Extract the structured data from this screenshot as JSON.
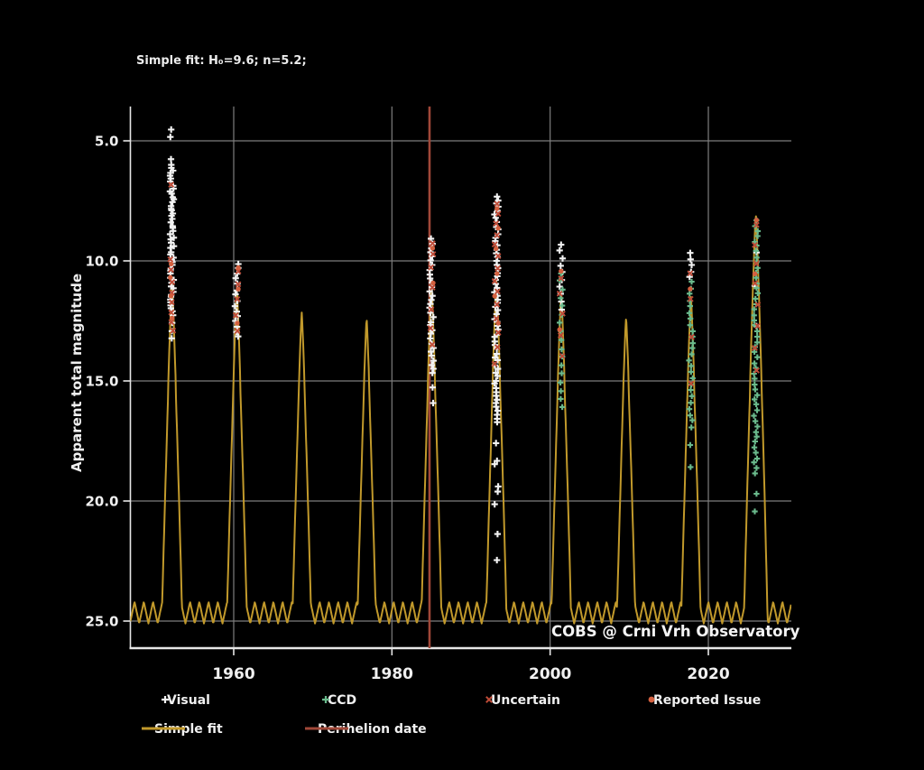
{
  "title": "Simple fit: H₀=9.6; n=5.2;",
  "watermark": "COBS @ Crni Vrh Observatory",
  "axes": {
    "ylabel": "Apparent total magnitude",
    "x_ticks": [
      1960,
      1980,
      2000,
      2020
    ],
    "x_tick_labels": [
      "1960",
      "1980",
      "2000",
      "2020"
    ],
    "y_ticks": [
      5,
      10,
      15,
      20,
      25
    ],
    "y_tick_labels": [
      "5.0",
      "10.0",
      "15.0",
      "20.0",
      "25.0"
    ],
    "x_range_years": [
      1946.94,
      2030.5
    ],
    "y_range_mag_top_to_bottom": [
      3.57,
      26.13
    ],
    "grid": true
  },
  "colors": {
    "background": "#000000",
    "grid": "#7e7e7e",
    "spine": "#e6e6e6",
    "text": "#f0f0f0",
    "visual": "#f2f2f2",
    "ccd": "#6aba8c",
    "uncertain": "#c04c38",
    "reported_issue": "#d4603f",
    "simple_fit": "#c1992b",
    "perihelion": "#a04738"
  },
  "legend": {
    "position": "bottom",
    "items": [
      {
        "label": "Visual",
        "marker": "plus",
        "color": "#f2f2f2"
      },
      {
        "label": "CCD",
        "marker": "plus",
        "color": "#6aba8c"
      },
      {
        "label": "Uncertain",
        "marker": "x",
        "color": "#c04c38"
      },
      {
        "label": "Reported Issue",
        "marker": "circle",
        "color": "#d4603f"
      },
      {
        "label": "Simple fit",
        "marker": "line",
        "color": "#c1992b"
      },
      {
        "label": "Perihelion date",
        "marker": "line",
        "color": "#a04738"
      }
    ]
  },
  "chart_data": {
    "type": "scatter",
    "title": "Simple fit: H₀=9.6; n=5.2;",
    "xlabel": "",
    "ylabel": "Apparent total magnitude",
    "xlim": [
      1946.94,
      2030.5
    ],
    "ylim_inverted_mag": [
      26.13,
      3.57
    ],
    "perihelion_year": 1984.75,
    "fit_curve": {
      "name": "Simple fit",
      "color": "#c1992b",
      "base_mag_min": 24.2,
      "base_mag_max": 25.1,
      "annual_wiggle_period_years": 1.17,
      "flank_steepness": 10.3,
      "flank_exponent": 1.2,
      "peaks": [
        [
          1952.2,
          10.9
        ],
        [
          1960.4,
          11.2
        ],
        [
          1968.6,
          12.15
        ],
        [
          1976.8,
          12.4
        ],
        [
          1985.0,
          11.0
        ],
        [
          1993.2,
          10.8
        ],
        [
          2001.4,
          11.3
        ],
        [
          2009.6,
          12.35
        ],
        [
          2017.8,
          11.5
        ],
        [
          2026.0,
          8.05
        ]
      ]
    },
    "series": [
      {
        "name": "Visual",
        "marker": "plus",
        "color": "#f2f2f2",
        "clusters": [
          {
            "year": 1952.2,
            "mags": [
              4.55,
              4.85,
              5.8,
              12.6,
              12.9,
              13.2
            ],
            "runs": [
              [
                6.0,
                12.3,
                0.12
              ]
            ]
          },
          {
            "year": 1960.4,
            "mags": [],
            "runs": [
              [
                10.1,
                13.2,
                0.22
              ]
            ]
          },
          {
            "year": 1985.0,
            "mags": [
              15.3,
              15.9
            ],
            "runs": [
              [
                9.1,
                14.8,
                0.18
              ]
            ]
          },
          {
            "year": 1993.2,
            "mags": [
              7.3,
              7.45,
              17.6,
              18.3,
              18.5,
              19.4,
              19.6,
              20.1,
              21.4,
              22.5
            ],
            "runs": [
              [
                7.6,
                16.8,
                0.16
              ]
            ]
          },
          {
            "year": 2001.4,
            "mags": [],
            "runs": [
              [
                9.3,
                12.0,
                0.3
              ]
            ]
          },
          {
            "year": 2017.8,
            "mags": [
              9.7,
              9.95,
              10.2,
              10.45,
              10.7
            ],
            "runs": []
          },
          {
            "year": 2026.0,
            "mags": [
              9.65,
              11.0,
              12.7
            ],
            "runs": []
          }
        ]
      },
      {
        "name": "CCD",
        "marker": "plus",
        "color": "#6aba8c",
        "clusters": [
          {
            "year": 2001.4,
            "mags": [],
            "runs": [
              [
                10.5,
                16.4,
                0.35
              ]
            ]
          },
          {
            "year": 2017.8,
            "mags": [
              17.7,
              18.6
            ],
            "runs": [
              [
                10.9,
                17.0,
                0.25
              ]
            ]
          },
          {
            "year": 2026.0,
            "mags": [
              19.7,
              20.4
            ],
            "runs": [
              [
                8.3,
                19.0,
                0.22
              ]
            ]
          }
        ]
      },
      {
        "name": "Uncertain",
        "marker": "x",
        "color": "#c04c38",
        "clusters": [
          {
            "year": 1952.2,
            "mags": [
              6.85,
              9.95,
              10.4,
              10.9,
              11.3,
              11.7,
              12.15,
              12.55,
              12.9
            ],
            "runs": []
          },
          {
            "year": 1960.4,
            "mags": [
              10.4,
              11.0,
              11.6,
              12.3,
              12.95
            ],
            "runs": []
          },
          {
            "year": 1985.0,
            "mags": [
              9.3,
              9.7,
              10.3,
              11.1,
              12.0,
              12.8,
              13.5
            ],
            "runs": []
          },
          {
            "year": 1993.2,
            "mags": [
              7.6,
              8.0,
              8.45,
              8.9,
              9.35,
              9.8,
              10.3,
              10.8,
              11.3,
              11.85,
              12.4,
              13.0,
              13.6,
              14.3
            ],
            "runs": []
          },
          {
            "year": 2001.4,
            "mags": [
              10.7,
              11.4,
              12.2,
              13.1,
              14.0
            ],
            "runs": []
          },
          {
            "year": 2017.8,
            "mags": [
              10.55,
              11.6,
              13.2,
              15.1
            ],
            "runs": []
          },
          {
            "year": 2026.0,
            "mags": [
              8.5,
              9.3,
              10.1,
              10.9,
              11.8,
              12.7,
              13.6,
              14.6
            ],
            "runs": []
          }
        ]
      },
      {
        "name": "Reported Issue",
        "marker": "circle",
        "color": "#d4603f",
        "clusters": [
          {
            "year": 1952.2,
            "mags": [
              10.15,
              10.7,
              11.5,
              12.4
            ],
            "runs": []
          },
          {
            "year": 1960.4,
            "mags": [
              10.25,
              11.2,
              12.6
            ],
            "runs": []
          },
          {
            "year": 1985.0,
            "mags": [
              9.5,
              10.9
            ],
            "runs": []
          },
          {
            "year": 1993.2,
            "mags": [
              7.8,
              8.6,
              9.5,
              10.5,
              11.5,
              12.6
            ],
            "runs": []
          },
          {
            "year": 2001.4,
            "mags": [
              10.4,
              12.9
            ],
            "runs": []
          },
          {
            "year": 2017.8,
            "mags": [
              11.2
            ],
            "runs": []
          },
          {
            "year": 2026.0,
            "mags": [
              8.3,
              10.5
            ],
            "runs": []
          }
        ]
      }
    ]
  }
}
